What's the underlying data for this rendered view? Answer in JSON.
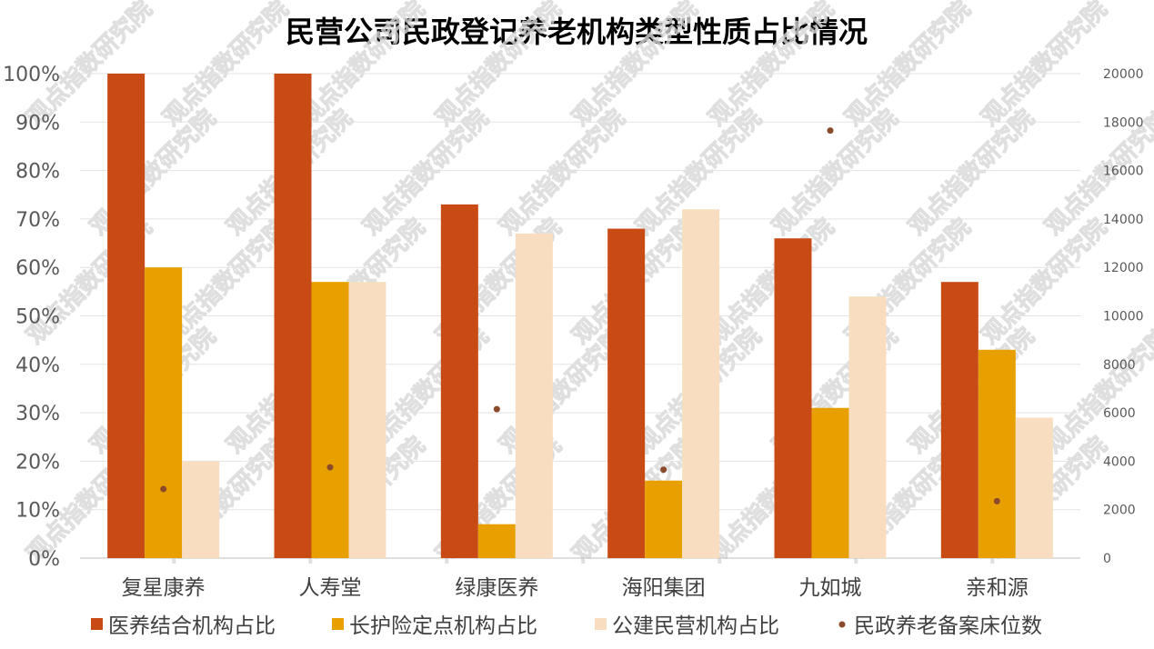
{
  "chart_data": {
    "type": "bar",
    "title": "民营公司民政登记养老机构类型性质占比情况",
    "categories": [
      "复星康养",
      "人寿堂",
      "绿康医养",
      "海阳集团",
      "九如城",
      "亲和源"
    ],
    "series": [
      {
        "name": "医养结合机构占比",
        "axis": "left",
        "kind": "bar",
        "color": "#c84b16",
        "values": [
          100,
          100,
          73,
          68,
          66,
          57
        ]
      },
      {
        "name": "长护险定点机构占比",
        "axis": "left",
        "kind": "bar",
        "color": "#e8a000",
        "values": [
          60,
          57,
          7,
          16,
          31,
          43
        ]
      },
      {
        "name": "公建民营机构占比",
        "axis": "left",
        "kind": "bar",
        "color": "#f9ddc0",
        "values": [
          20,
          57,
          67,
          72,
          54,
          29
        ]
      },
      {
        "name": "民政养老备案床位数",
        "axis": "right",
        "kind": "scatter",
        "color": "#8b4a2a",
        "values": [
          2850,
          3750,
          6150,
          3650,
          17650,
          2350
        ]
      }
    ],
    "ylim_left": [
      0,
      100
    ],
    "ylim_right": [
      0,
      20000
    ],
    "yticks_left": [
      "0%",
      "10%",
      "20%",
      "30%",
      "40%",
      "50%",
      "60%",
      "70%",
      "80%",
      "90%",
      "100%"
    ],
    "yticks_right": [
      "0",
      "2000",
      "4000",
      "6000",
      "8000",
      "10000",
      "12000",
      "14000",
      "16000",
      "18000",
      "20000"
    ],
    "grid": true,
    "legend_position": "bottom",
    "watermark": "观点指数研究院"
  }
}
